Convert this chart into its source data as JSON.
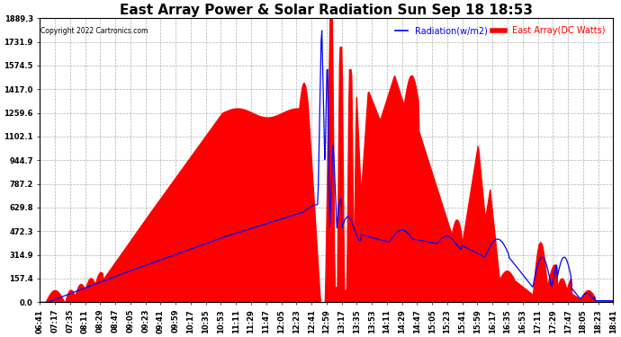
{
  "title": "East Array Power & Solar Radiation Sun Sep 18 18:53",
  "copyright": "Copyright 2022 Cartronics.com",
  "legend_radiation": "Radiation(w/m2)",
  "legend_east_array": "East Array(DC Watts)",
  "legend_radiation_color": "#0000ff",
  "legend_east_array_color": "#ff0000",
  "ymax": 1889.3,
  "ymin": 0.0,
  "yticks": [
    0.0,
    157.4,
    314.9,
    472.3,
    629.8,
    787.2,
    944.7,
    1102.1,
    1259.6,
    1417.0,
    1574.5,
    1731.9,
    1889.3
  ],
  "fill_color": "#ff0000",
  "line_color": "#0000ff",
  "background_color": "#ffffff",
  "grid_color": "#b0b0b0",
  "title_fontsize": 11,
  "tick_label_fontsize": 6,
  "xtick_labels": [
    "06:41",
    "07:17",
    "07:35",
    "08:11",
    "08:29",
    "08:47",
    "09:05",
    "09:23",
    "09:41",
    "09:59",
    "10:17",
    "10:35",
    "10:53",
    "11:11",
    "11:29",
    "11:47",
    "12:05",
    "12:23",
    "12:41",
    "12:59",
    "13:17",
    "13:35",
    "13:53",
    "14:11",
    "14:29",
    "14:47",
    "15:05",
    "15:23",
    "15:41",
    "15:59",
    "16:17",
    "16:35",
    "16:53",
    "17:11",
    "17:29",
    "17:47",
    "18:05",
    "18:23",
    "18:41"
  ]
}
